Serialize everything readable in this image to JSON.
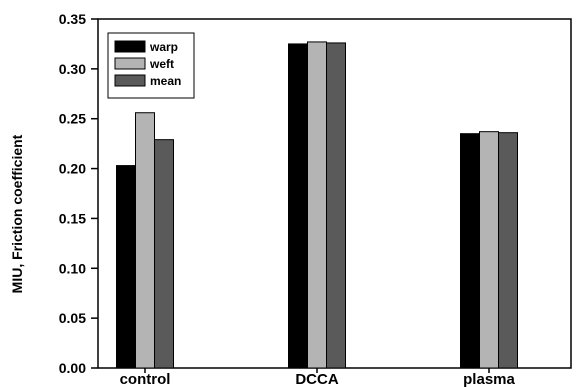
{
  "chart_data": {
    "type": "bar",
    "categories": [
      "control",
      "DCCA",
      "plasma"
    ],
    "series": [
      {
        "name": "warp",
        "values": [
          0.203,
          0.325,
          0.235
        ],
        "color": "#000000"
      },
      {
        "name": "weft",
        "values": [
          0.256,
          0.327,
          0.237
        ],
        "color": "#b4b4b4"
      },
      {
        "name": "mean",
        "values": [
          0.229,
          0.326,
          0.236
        ],
        "color": "#5a5a5a"
      }
    ],
    "ylabel": "MIU, Friction coefficient",
    "ylim": [
      0,
      0.35
    ],
    "yticks": [
      "0.00",
      "0.05",
      "0.10",
      "0.15",
      "0.20",
      "0.25",
      "0.30",
      "0.35"
    ],
    "legend_position": "top-left",
    "grid": false
  }
}
